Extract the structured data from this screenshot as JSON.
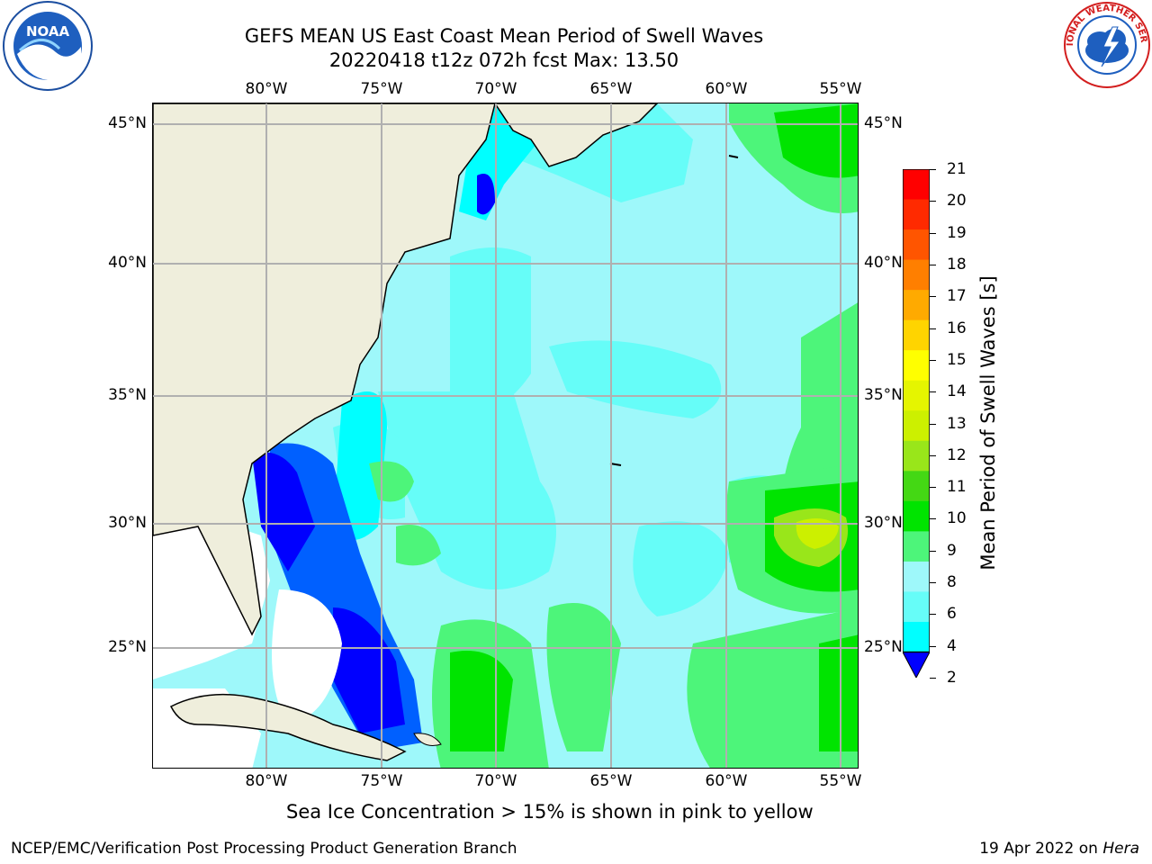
{
  "header": {
    "title_line1": "GEFS MEAN US East Coast Mean Period of Swell Waves",
    "title_line2": "20220418 t12z 072h fcst   Max: 13.50"
  },
  "logos": {
    "left": "noaa-logo",
    "left_text": "NOAA",
    "right": "national-weather-service-logo",
    "right_text": "NATIONAL WEATHER SERVICE"
  },
  "map": {
    "longitude_labels": [
      "80°W",
      "75°W",
      "70°W",
      "65°W",
      "60°W",
      "55°W"
    ],
    "latitude_labels": [
      "45°N",
      "40°N",
      "35°N",
      "30°N",
      "25°N"
    ],
    "land_color": "#efeedc",
    "ocean_base_color": "#9ef8fa",
    "grid_color": "#b0b0b0"
  },
  "colorbar": {
    "label": "Mean Period of Swell Waves [s]",
    "ticks": [
      "21",
      "20",
      "19",
      "18",
      "17",
      "16",
      "15",
      "14",
      "13",
      "12",
      "11",
      "10",
      "9",
      "8",
      "6",
      "4",
      "2"
    ],
    "colors": [
      "#ff0000",
      "#ff2a00",
      "#ff5500",
      "#ff7f00",
      "#ffaa00",
      "#ffd400",
      "#ffff00",
      "#e5f500",
      "#ccf000",
      "#99e61a",
      "#44d814",
      "#00e400",
      "#4df57a",
      "#9ef8fa",
      "#66fdf8",
      "#00ffff",
      "#00c0ff",
      "#0060ff",
      "#0000ff"
    ]
  },
  "footer": {
    "sea_ice_note": "Sea Ice Concentration > 15% is shown in pink to yellow",
    "branch": "NCEP/EMC/Verification Post Processing Product Generation Branch",
    "date": "19 Apr 2022 on ",
    "machine": "Hera"
  }
}
